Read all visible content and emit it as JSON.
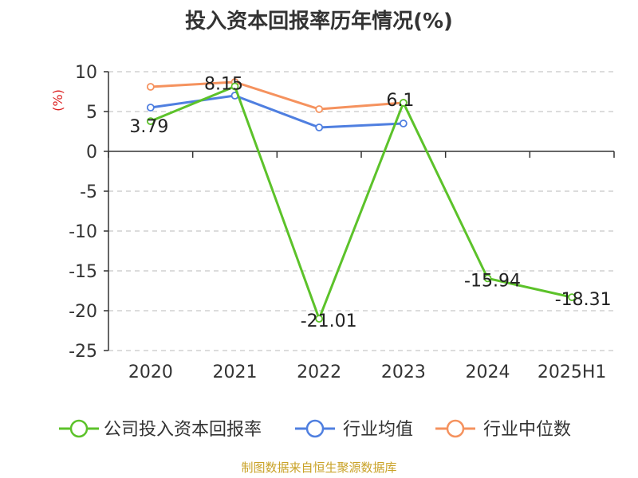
{
  "chart_data": {
    "type": "line",
    "title": "投入资本回报率历年情况(%)",
    "ylabel": "(%)",
    "categories": [
      "2020",
      "2021",
      "2022",
      "2023",
      "2024",
      "2025H1"
    ],
    "ylim": [
      -25,
      10
    ],
    "yticks": [
      10,
      5,
      0,
      -5,
      -10,
      -15,
      -20,
      -25
    ],
    "grid": true,
    "legend_position": "bottom",
    "series": [
      {
        "name": "公司投入资本回报率",
        "color": "#5cc22a",
        "values": [
          3.79,
          8.15,
          -21.01,
          6.1,
          -15.94,
          -18.31
        ],
        "labels": [
          "3.79",
          "8.15",
          "-21.01",
          "6.1",
          "-15.94",
          "-18.31"
        ]
      },
      {
        "name": "行业均值",
        "color": "#4f7fe0",
        "values": [
          5.5,
          7.0,
          3.0,
          3.5,
          null,
          null
        ]
      },
      {
        "name": "行业中位数",
        "color": "#f5925e",
        "values": [
          8.1,
          8.7,
          5.3,
          6.1,
          null,
          null
        ]
      }
    ],
    "colors": {
      "axis": "#333333",
      "grid": "#c8c8c8",
      "unit": "#dd2222"
    }
  },
  "footer": {
    "source": "制图数据来自恒生聚源数据库"
  }
}
